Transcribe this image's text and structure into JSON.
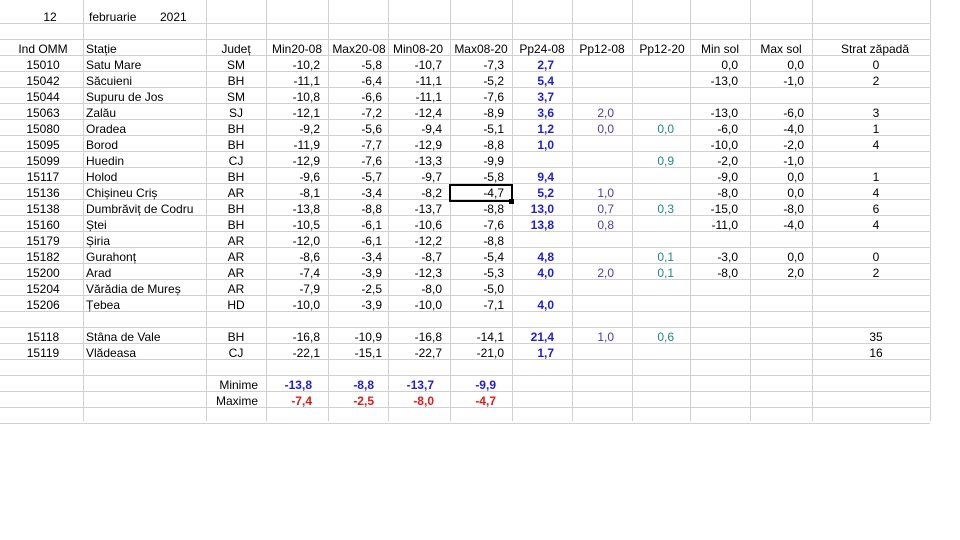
{
  "header": {
    "day": "12",
    "month": "februarie",
    "year": "2021"
  },
  "columns": {
    "ind": "Ind OMM",
    "station": "Stație",
    "county": "Județ",
    "min2008": "Min20-08",
    "max2008": "Max20-08",
    "min0820": "Min08-20",
    "max0820": "Max08-20",
    "pp24": "Pp24-08",
    "pp12a": "Pp12-08",
    "pp12b": "Pp12-20",
    "minsol": "Min sol",
    "maxsol": "Max sol",
    "snow": "Strat zăpadă"
  },
  "rows": [
    {
      "ind": "15010",
      "st": "Satu Mare",
      "jud": "SM",
      "a": "-10,2",
      "b": "-5,8",
      "c": "-10,7",
      "d": "-7,3",
      "pp": "2,7",
      "p1": "",
      "p2": "",
      "ms": "0,0",
      "xs": "0,0",
      "sn": "0"
    },
    {
      "ind": "15042",
      "st": "Săcuieni",
      "jud": "BH",
      "a": "-11,1",
      "b": "-6,4",
      "c": "-11,1",
      "d": "-5,2",
      "pp": "5,4",
      "p1": "",
      "p2": "",
      "ms": "-13,0",
      "xs": "-1,0",
      "sn": "2"
    },
    {
      "ind": "15044",
      "st": "Supuru de Jos",
      "jud": "SM",
      "a": "-10,8",
      "b": "-6,6",
      "c": "-11,1",
      "d": "-7,6",
      "pp": "3,7",
      "p1": "",
      "p2": "",
      "ms": "",
      "xs": "",
      "sn": ""
    },
    {
      "ind": "15063",
      "st": "Zalău",
      "jud": "SJ",
      "a": "-12,1",
      "b": "-7,2",
      "c": "-12,4",
      "d": "-8,9",
      "pp": "3,6",
      "p1": "2,0",
      "p2": "",
      "ms": "-13,0",
      "xs": "-6,0",
      "sn": "3"
    },
    {
      "ind": "15080",
      "st": "Oradea",
      "jud": "BH",
      "a": "-9,2",
      "b": "-5,6",
      "c": "-9,4",
      "d": "-5,1",
      "pp": "1,2",
      "p1": "0,0",
      "p2": "0,0",
      "ms": "-6,0",
      "xs": "-4,0",
      "sn": "1"
    },
    {
      "ind": "15095",
      "st": "Borod",
      "jud": "BH",
      "a": "-11,9",
      "b": "-7,7",
      "c": "-12,9",
      "d": "-8,8",
      "pp": "1,0",
      "p1": "",
      "p2": "",
      "ms": "-10,0",
      "xs": "-2,0",
      "sn": "4"
    },
    {
      "ind": "15099",
      "st": "Huedin",
      "jud": "CJ",
      "a": "-12,9",
      "b": "-7,6",
      "c": "-13,3",
      "d": "-9,9",
      "pp": "",
      "p1": "",
      "p2": "0,9",
      "ms": "-2,0",
      "xs": "-1,0",
      "sn": ""
    },
    {
      "ind": "15117",
      "st": "Holod",
      "jud": "BH",
      "a": "-9,6",
      "b": "-5,7",
      "c": "-9,7",
      "d": "-5,8",
      "pp": "9,4",
      "p1": "",
      "p2": "",
      "ms": "-9,0",
      "xs": "0,0",
      "sn": "1"
    },
    {
      "ind": "15136",
      "st": "Chișineu   Criș",
      "jud": "AR",
      "a": "-8,1",
      "b": "-3,4",
      "c": "-8,2",
      "d": "-4,7",
      "pp": "5,2",
      "p1": "1,0",
      "p2": "",
      "ms": "-8,0",
      "xs": "0,0",
      "sn": "4"
    },
    {
      "ind": "15138",
      "st": "Dumbrăviț  de Codru",
      "jud": "BH",
      "a": "-13,8",
      "b": "-8,8",
      "c": "-13,7",
      "d": "-8,8",
      "pp": "13,0",
      "p1": "0,7",
      "p2": "0,3",
      "ms": "-15,0",
      "xs": "-8,0",
      "sn": "6"
    },
    {
      "ind": "15160",
      "st": "Ștei",
      "jud": "BH",
      "a": "-10,5",
      "b": "-6,1",
      "c": "-10,6",
      "d": "-7,6",
      "pp": "13,8",
      "p1": "0,8",
      "p2": "",
      "ms": "-11,0",
      "xs": "-4,0",
      "sn": "4"
    },
    {
      "ind": "15179",
      "st": "Șiria",
      "jud": "AR",
      "a": "-12,0",
      "b": "-6,1",
      "c": "-12,2",
      "d": "-8,8",
      "pp": "",
      "p1": "",
      "p2": "",
      "ms": "",
      "xs": "",
      "sn": ""
    },
    {
      "ind": "15182",
      "st": "Gurahonț",
      "jud": "AR",
      "a": "-8,6",
      "b": "-3,4",
      "c": "-8,7",
      "d": "-5,4",
      "pp": "4,8",
      "p1": "",
      "p2": "0,1",
      "ms": "-3,0",
      "xs": "0,0",
      "sn": "0"
    },
    {
      "ind": "15200",
      "st": "Arad",
      "jud": "AR",
      "a": "-7,4",
      "b": "-3,9",
      "c": "-12,3",
      "d": "-5,3",
      "pp": "4,0",
      "p1": "2,0",
      "p2": "0,1",
      "ms": "-8,0",
      "xs": "2,0",
      "sn": "2"
    },
    {
      "ind": "15204",
      "st": "Vărădia de Mureș",
      "jud": "AR",
      "a": "-7,9",
      "b": "-2,5",
      "c": "-8,0",
      "d": "-5,0",
      "pp": "",
      "p1": "",
      "p2": "",
      "ms": "",
      "xs": "",
      "sn": ""
    },
    {
      "ind": "15206",
      "st": "Țebea",
      "jud": "HD",
      "a": "-10,0",
      "b": "-3,9",
      "c": "-10,0",
      "d": "-7,1",
      "pp": "4,0",
      "p1": "",
      "p2": "",
      "ms": "",
      "xs": "",
      "sn": ""
    }
  ],
  "mountain_rows": [
    {
      "ind": "15118",
      "st": "Stâna de Vale",
      "jud": "BH",
      "a": "-16,8",
      "b": "-10,9",
      "c": "-16,8",
      "d": "-14,1",
      "pp": "21,4",
      "p1": "1,0",
      "p2": "0,6",
      "ms": "",
      "xs": "",
      "sn": "35"
    },
    {
      "ind": "15119",
      "st": "Vlădeasa",
      "jud": "CJ",
      "a": "-22,1",
      "b": "-15,1",
      "c": "-22,7",
      "d": "-21,0",
      "pp": "1,7",
      "p1": "",
      "p2": "",
      "ms": "",
      "xs": "",
      "sn": "16"
    }
  ],
  "summary": {
    "min_label": "Minime",
    "max_label": "Maxime",
    "minime": [
      "-13,8",
      "-8,8",
      "-13,7",
      "-9,9"
    ],
    "maxime": [
      "-7,4",
      "-2,5",
      "-8,0",
      "-4,7"
    ]
  },
  "colors": {
    "blue": "#1f1fd0",
    "purple": "#4b3fa8",
    "teal": "#1f8a8a",
    "red": "#e01b1b",
    "grid": "#d0d0d0"
  },
  "selected_cell": "Max08-20 / 15136"
}
